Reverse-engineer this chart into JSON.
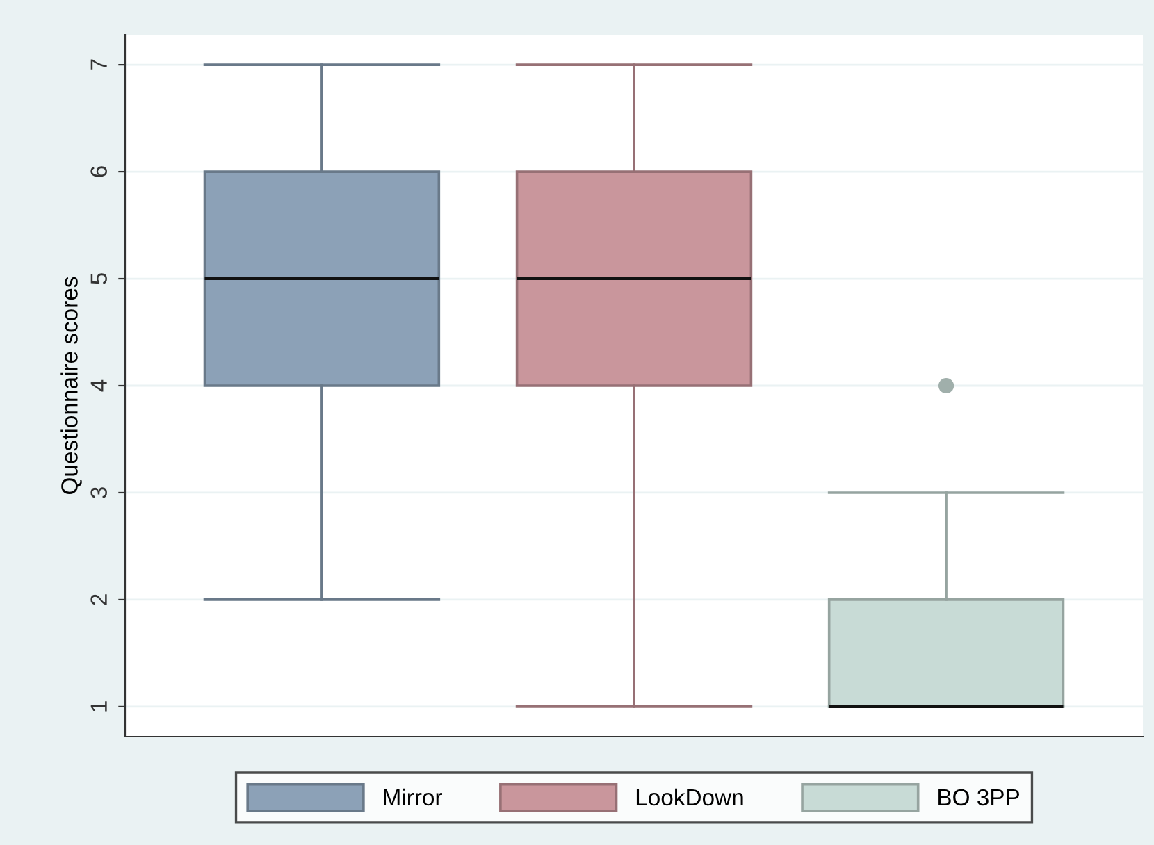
{
  "chart_data": {
    "type": "box",
    "ylabel": "Questionnaire scores",
    "categories": [
      null,
      null,
      null
    ],
    "series": [
      {
        "name": "Mirror",
        "color": "#8ca1b7",
        "boxes": [
          {
            "low": 2,
            "q1": 4,
            "median": 5,
            "q3": 6,
            "high": 7
          },
          null,
          null
        ]
      },
      {
        "name": "LookDown",
        "color": "#c9969c",
        "boxes": [
          null,
          {
            "low": 1,
            "q1": 4,
            "median": 5,
            "q3": 6,
            "high": 7
          },
          null
        ]
      },
      {
        "name": "BO 3PP",
        "color": "#c8dbd6",
        "boxes": [
          null,
          null,
          {
            "low": 1,
            "q1": 1,
            "median": 1,
            "q3": 2,
            "high": 3,
            "outliers": [
              4
            ]
          }
        ]
      }
    ],
    "ylim": [
      0.72,
      7.28
    ],
    "yticks": [
      1,
      2,
      3,
      4,
      5,
      6,
      7
    ],
    "grid": "y",
    "legend": "bottom",
    "tick_labels": "y"
  }
}
